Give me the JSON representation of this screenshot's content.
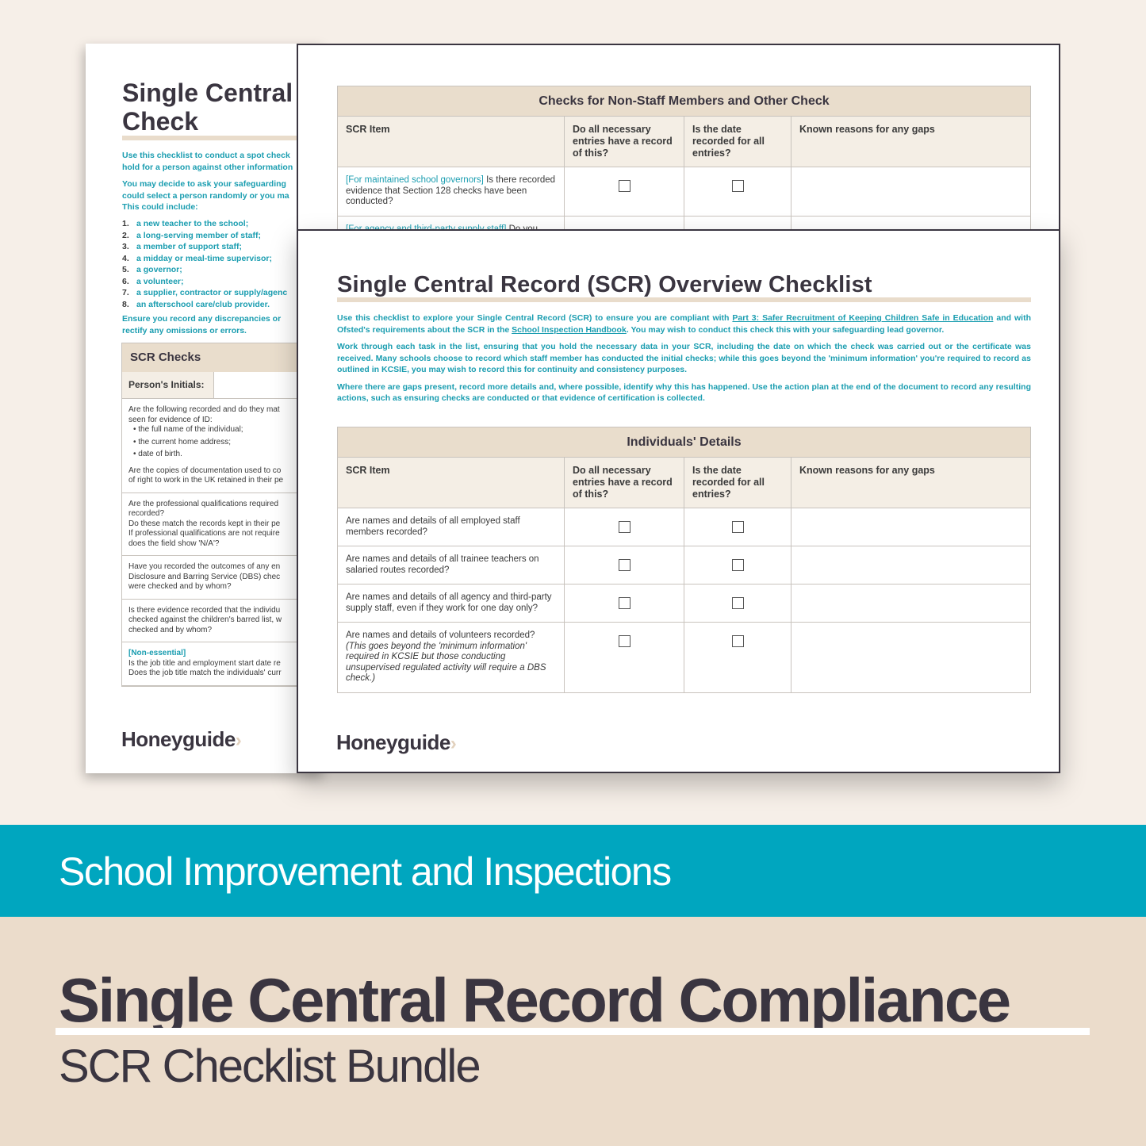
{
  "back_page": {
    "title_line1": "Single Central",
    "title_line2": "Check",
    "intro1": "Use this checklist to conduct a spot check",
    "intro2": "hold for a person against other information",
    "intro3": "You may decide to ask your safeguarding",
    "intro4": "could select a person randomly or you ma",
    "intro5": "This could include:",
    "list": [
      {
        "n": "1.",
        "text": "a new teacher to the school;"
      },
      {
        "n": "2.",
        "text": "a long-serving member of staff;"
      },
      {
        "n": "3.",
        "text": "a member of support staff;"
      },
      {
        "n": "4.",
        "text": "a midday or meal-time supervisor;"
      },
      {
        "n": "5.",
        "text": "a governor;"
      },
      {
        "n": "6.",
        "text": "a volunteer;"
      },
      {
        "n": "7.",
        "text": "a supplier, contractor or supply/agenc"
      },
      {
        "n": "8.",
        "text": "an afterschool care/club provider."
      }
    ],
    "ensure1": "Ensure you record any discrepancies or",
    "ensure2": "rectify any omissions or errors.",
    "section_title": "SCR Checks",
    "initials_label": "Person's Initials:",
    "rows": [
      {
        "lines": [
          "Are the following recorded and do they mat",
          "seen for evidence of ID:",
          "• the full name of the individual;",
          "• the current home address;",
          "• date of birth.",
          "",
          "Are the copies of documentation used to co",
          "of right to work in the UK retained in their pe"
        ]
      },
      {
        "lines": [
          "Are the professional qualifications required",
          "recorded?",
          "Do these match the records kept in their pe",
          "If professional qualifications are not require",
          "does the field show 'N/A'?"
        ]
      },
      {
        "lines": [
          "Have you recorded the outcomes of any en",
          "Disclosure and Barring Service (DBS) chec",
          "were checked and by whom?"
        ]
      },
      {
        "lines": [
          "Is there evidence recorded that the individu",
          "checked against the children's barred list, w",
          "checked and by whom?"
        ]
      },
      {
        "tag": "[Non-essential]",
        "lines": [
          "Is the job title and employment start date re",
          "Does the job title match the individuals' curr"
        ]
      }
    ],
    "logo": "Honeyguide"
  },
  "mid_page": {
    "section_title": "Checks for Non-Staff Members and Other Check",
    "columns": [
      "SCR Item",
      "Do all necessary entries have a record of this?",
      "Is the date recorded for all entries?",
      "Known reasons for any gaps"
    ],
    "row1_tag": "[For maintained school governors]",
    "row1_text": " Is there recorded evidence that Section 128 checks have been conducted?",
    "row2_tag": "[For agency and third-party supply staff]",
    "row2_text": " Do you"
  },
  "front_page": {
    "title": "Single Central Record (SCR) Overview Checklist",
    "p1_a": "Use this checklist to explore your Single Central Record (SCR) to ensure you are compliant with ",
    "p1_link1": "Part 3: Safer Recruitment of Keeping Children Safe in Education",
    "p1_b": " and with Ofsted's requirements about the SCR in the ",
    "p1_link2": "School Inspection Handbook",
    "p1_c": ". You may wish to conduct this check this with your safeguarding lead governor.",
    "p2": "Work through each task in the list, ensuring that you hold the necessary data in your SCR, including the date on which the check was carried out or the certificate was received. Many schools choose to record which staff member has conducted the initial checks; while this goes beyond the 'minimum information' you're required to record as outlined in KCSIE, you may wish to record this for continuity and consistency purposes.",
    "p3": "Where there are gaps present, record more details and, where possible, identify why this has happened. Use the action plan at the end of the document to record any resulting actions, such as ensuring checks are conducted or that evidence of certification is collected.",
    "section_title": "Individuals' Details",
    "columns": [
      "SCR Item",
      "Do all necessary entries have a record of this?",
      "Is the date recorded for all entries?",
      "Known reasons for any gaps"
    ],
    "rows": [
      {
        "text": "Are names and details of all employed staff members recorded?",
        "note": ""
      },
      {
        "text": "Are names and details of all trainee teachers on salaried routes recorded?",
        "note": ""
      },
      {
        "text": "Are names and details of all agency and third-party supply staff, even if they work for one day only?",
        "note": ""
      },
      {
        "text": "Are names and details of volunteers recorded?",
        "note": "(This goes beyond the 'minimum information' required in KCSIE but those conducting unsupervised regulated activity will require a DBS check.)"
      }
    ],
    "logo": "Honeyguide"
  },
  "banner": {
    "text": "School Improvement and Inspections"
  },
  "product": {
    "title": "Single Central Record Compliance",
    "subtitle": "SCR Checklist Bundle"
  },
  "colors": {
    "teal": "#00a6bf",
    "beige": "#ebdccb",
    "dark": "#3a3540",
    "link": "#1a9db0"
  }
}
